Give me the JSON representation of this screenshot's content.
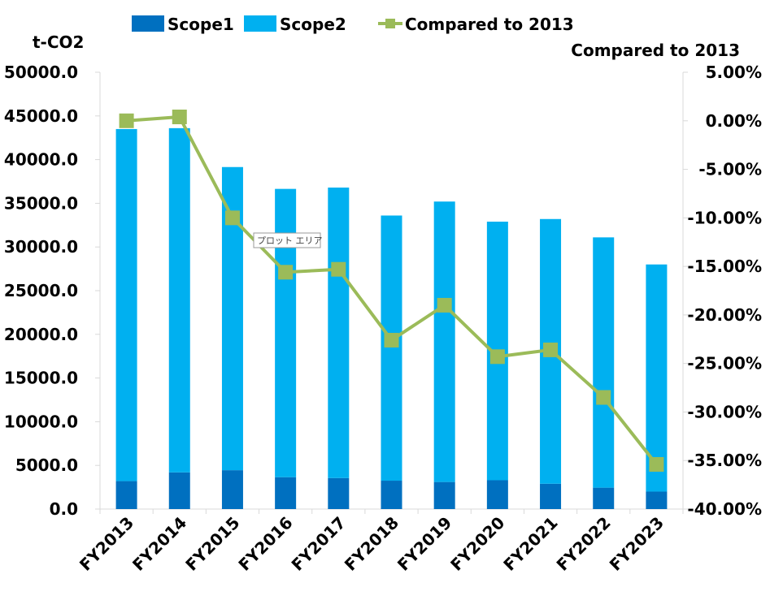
{
  "chart_data": {
    "type": "bar",
    "stacked": true,
    "categories": [
      "FY2013",
      "FY2014",
      "FY2015",
      "FY2016",
      "FY2017",
      "FY2018",
      "FY2019",
      "FY2020",
      "FY2021",
      "FY2022",
      "FY2023"
    ],
    "series": [
      {
        "name": "Scope1",
        "axis": "left",
        "color": "#0070c0",
        "values": [
          3200,
          4200,
          4450,
          3650,
          3550,
          3250,
          3100,
          3300,
          2900,
          2450,
          2000
        ]
      },
      {
        "name": "Scope2",
        "axis": "left",
        "color": "#00b0f0",
        "values": [
          40300,
          39400,
          34700,
          33000,
          33250,
          30350,
          32100,
          29600,
          30300,
          28650,
          26000
        ]
      },
      {
        "name": "Compared to 2013",
        "axis": "right",
        "type": "line",
        "color": "#9bbb59",
        "values": [
          0.0,
          0.4,
          -10.0,
          -15.6,
          -15.3,
          -22.6,
          -19.0,
          -24.3,
          -23.6,
          -28.5,
          -35.4
        ]
      }
    ],
    "ylabel": "t-CO2",
    "y2label": "Compared to 2013",
    "ylim": [
      0,
      50000
    ],
    "y2lim": [
      -40,
      5
    ],
    "y_ticks": [
      "0.0",
      "5000.0",
      "10000.0",
      "15000.0",
      "20000.0",
      "25000.0",
      "30000.0",
      "35000.0",
      "40000.0",
      "45000.0",
      "50000.0"
    ],
    "y2_ticks": [
      "-40.00%",
      "-35.00%",
      "-30.00%",
      "-25.00%",
      "-20.00%",
      "-15.00%",
      "-10.00%",
      "-5.00%",
      "0.00%",
      "5.00%"
    ],
    "legend": [
      "Scope1",
      "Scope2",
      "Compared to 2013"
    ],
    "legend_position": "top",
    "grid": false,
    "tooltip": "プロット エリア"
  }
}
